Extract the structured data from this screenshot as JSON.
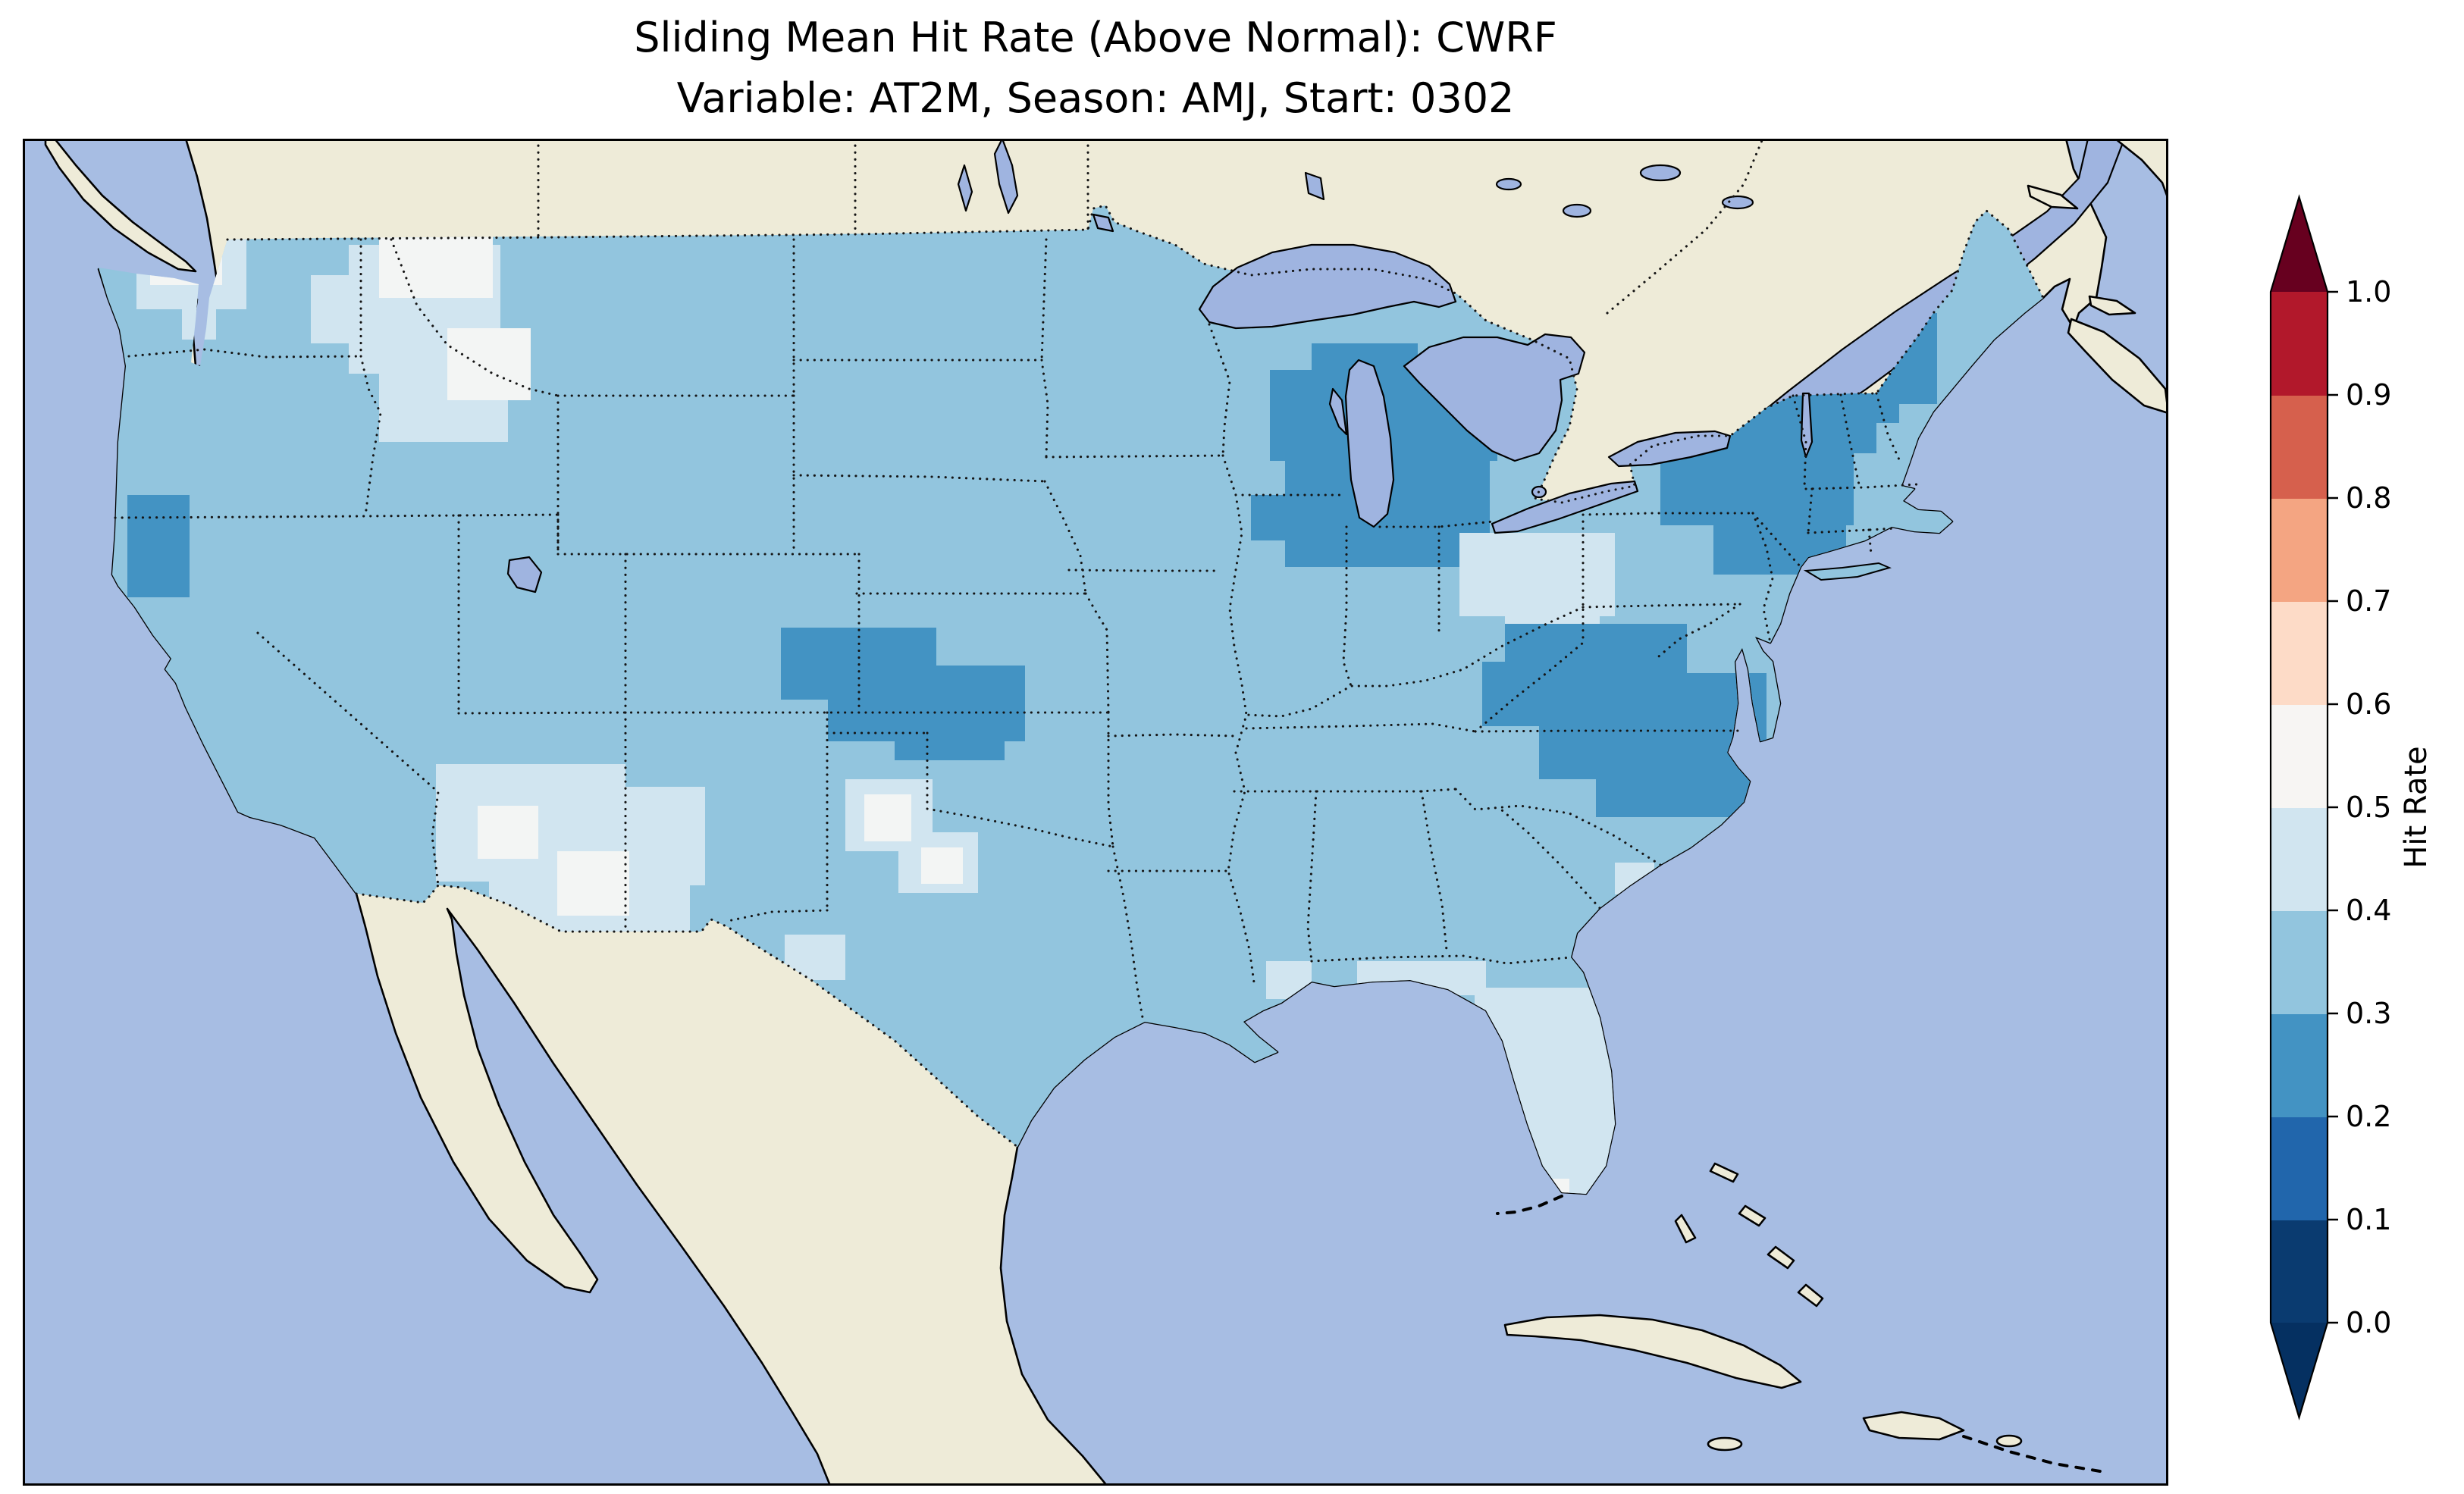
{
  "figure": {
    "title": "Sliding Mean Hit Rate (Above Normal): CWRF",
    "subtitle": "Variable: AT2M, Season: AMJ, Start: 0302"
  },
  "chart_data": {
    "type": "heatmap",
    "title": "Sliding Mean Hit Rate (Above Normal): CWRF",
    "subtitle": "Variable: AT2M, Season: AMJ, Start: 0302",
    "statistic": "Sliding Mean Hit Rate",
    "category": "Above Normal",
    "model": "CWRF",
    "variable": "AT2M",
    "season": "AMJ",
    "start": "0302",
    "colorbar": {
      "label": "Hit Rate",
      "ticks": [
        "1.0",
        "0.9",
        "0.8",
        "0.7",
        "0.6",
        "0.5",
        "0.4",
        "0.3",
        "0.2",
        "0.1",
        "0.0"
      ],
      "tick_values": [
        1.0,
        0.9,
        0.8,
        0.7,
        0.6,
        0.5,
        0.4,
        0.3,
        0.2,
        0.1,
        0.0
      ],
      "segments_bottom_to_top": [
        "#0a3b70",
        "#2166ac",
        "#4393c3",
        "#92c5de",
        "#d1e5f0",
        "#f7f5f3",
        "#fddbc7",
        "#f4a582",
        "#d6604d",
        "#b2182b"
      ],
      "under_color": "#053061",
      "over_color": "#67001f",
      "extend": "both",
      "orientation": "vertical",
      "range": [
        0.0,
        1.0
      ]
    },
    "map_colors": {
      "ocean": "#a7bde3",
      "land": "#eeebd8",
      "lakes": "#9fb4e0",
      "us_base_bin": "0.3-0.4"
    },
    "value_bins": {
      "0.2-0.3": "#4393c3",
      "0.3-0.4": "#92c5de",
      "0.4-0.5": "#d1e5f0",
      "0.5-0.6": "#f3f5f4"
    },
    "regions": [
      {
        "name": "pacific-northwest-light",
        "bin": "0.4-0.5",
        "rects": [
          [
            150,
            95,
            145,
            130
          ],
          [
            205,
            95,
            60,
            60
          ],
          [
            210,
            225,
            45,
            40
          ]
        ]
      },
      {
        "name": "pacific-northwest-white",
        "bin": "0.5-0.6",
        "rects": [
          [
            168,
            108,
            95,
            85
          ]
        ]
      },
      {
        "name": "montana-idaho-light",
        "bin": "0.4-0.5",
        "rects": [
          [
            430,
            140,
            200,
            170
          ],
          [
            470,
            270,
            170,
            130
          ],
          [
            380,
            180,
            90,
            90
          ]
        ]
      },
      {
        "name": "montana-white",
        "bin": "0.5-0.6",
        "rects": [
          [
            470,
            120,
            150,
            90
          ],
          [
            560,
            250,
            110,
            95
          ]
        ]
      },
      {
        "name": "california-coast-dark",
        "bin": "0.2-0.3",
        "rects": [
          [
            138,
            470,
            82,
            135
          ]
        ]
      },
      {
        "name": "arizona-new-mexico-light",
        "bin": "0.4-0.5",
        "rects": [
          [
            545,
            825,
            250,
            155
          ],
          [
            615,
            945,
            265,
            175
          ],
          [
            735,
            855,
            165,
            130
          ],
          [
            700,
            1060,
            120,
            70
          ]
        ]
      },
      {
        "name": "arizona-new-mexico-white",
        "bin": "0.5-0.6",
        "rects": [
          [
            705,
            940,
            95,
            85
          ],
          [
            600,
            880,
            80,
            70
          ]
        ]
      },
      {
        "name": "texas-panhandle-light",
        "bin": "0.4-0.5",
        "rects": [
          [
            1085,
            845,
            115,
            95
          ],
          [
            1155,
            915,
            105,
            80
          ],
          [
            1005,
            1050,
            80,
            60
          ]
        ]
      },
      {
        "name": "texas-panhandle-white",
        "bin": "0.5-0.6",
        "rects": [
          [
            1110,
            865,
            62,
            62
          ],
          [
            1185,
            935,
            55,
            48
          ]
        ]
      },
      {
        "name": "nebraska-kansas-dark",
        "bin": "0.2-0.3",
        "rects": [
          [
            1000,
            645,
            205,
            95
          ],
          [
            1062,
            695,
            260,
            100
          ],
          [
            1150,
            765,
            145,
            55
          ]
        ]
      },
      {
        "name": "upper-midwest-dark",
        "bin": "0.2-0.3",
        "rects": [
          [
            1645,
            305,
            300,
            120
          ],
          [
            1665,
            390,
            270,
            175
          ],
          [
            1620,
            470,
            130,
            60
          ],
          [
            1700,
            270,
            140,
            80
          ]
        ]
      },
      {
        "name": "ohio-valley-light",
        "bin": "0.4-0.5",
        "rects": [
          [
            1895,
            520,
            205,
            110
          ],
          [
            1955,
            595,
            125,
            60
          ]
        ]
      },
      {
        "name": "appalachia-virginia-dark",
        "bin": "0.2-0.3",
        "rects": [
          [
            1955,
            640,
            240,
            115
          ],
          [
            2000,
            705,
            300,
            140
          ],
          [
            2075,
            805,
            225,
            90
          ],
          [
            1925,
            690,
            105,
            85
          ]
        ]
      },
      {
        "name": "northeast-dark",
        "bin": "0.2-0.3",
        "rects": [
          [
            2100,
            300,
            345,
            115
          ],
          [
            2160,
            395,
            255,
            115
          ],
          [
            2230,
            495,
            175,
            80
          ],
          [
            2350,
            250,
            125,
            125
          ],
          [
            2430,
            230,
            95,
            120
          ]
        ]
      },
      {
        "name": "florida-light",
        "bin": "0.4-0.5",
        "rects": [
          [
            1915,
            1120,
            185,
            290
          ],
          [
            1760,
            1085,
            170,
            45
          ]
        ]
      },
      {
        "name": "gulf-and-carolina-light-spots",
        "bin": "0.4-0.5",
        "rects": [
          [
            1640,
            1085,
            60,
            50
          ],
          [
            2100,
            955,
            52,
            42
          ]
        ]
      },
      {
        "name": "south-florida-white-spots",
        "bin": "0.5-0.6",
        "rects": [
          [
            1945,
            1370,
            42,
            38
          ],
          [
            2000,
            1372,
            40,
            36
          ]
        ]
      }
    ]
  }
}
